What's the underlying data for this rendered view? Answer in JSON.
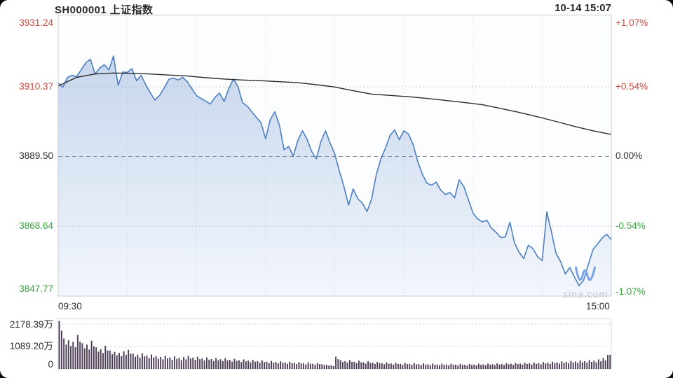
{
  "header": {
    "title": "SH000001 上证指数",
    "timestamp": "10-14 15:07"
  },
  "watermark": "sina.com",
  "colors": {
    "up": "#cc4841",
    "down": "#3aa33f",
    "flat": "#2d2d2d",
    "price_line": "#4d7ec2",
    "avg_line": "#2b2b2b",
    "volume_bar": "#4c3b56",
    "grid_light": "#e4e8f0",
    "grid_dotted": "#c9ced8",
    "zero_line": "#8a8f96",
    "border": "#c6ccd5",
    "fill_rgb": "77,126,194"
  },
  "chart_data": {
    "type": "line",
    "subtype": "intraday-price-with-volume",
    "title": "SH000001 上证指数",
    "prev_close": 3889.5,
    "y_max": 3931.24,
    "y_min": 3847.77,
    "session_minutes": 240,
    "x_ticks": [
      "09:30",
      "15:00"
    ],
    "y_axis_left": [
      {
        "text": "3931.24",
        "tone": "up"
      },
      {
        "text": "3910.37",
        "tone": "up"
      },
      {
        "text": "3889.50",
        "tone": "flat"
      },
      {
        "text": "3868.64",
        "tone": "down"
      },
      {
        "text": "3847.77",
        "tone": "down"
      }
    ],
    "y_axis_right": [
      {
        "text": "+1.07%",
        "tone": "up"
      },
      {
        "text": "+0.54%",
        "tone": "up"
      },
      {
        "text": "0.00%",
        "tone": "flat"
      },
      {
        "text": "-0.54%",
        "tone": "down"
      },
      {
        "text": "-1.07%",
        "tone": "down"
      }
    ],
    "price": {
      "t_step_min": 2,
      "values": [
        3911.5,
        3910.2,
        3913.2,
        3913.8,
        3913.4,
        3915.5,
        3917.6,
        3918.6,
        3914.2,
        3916.0,
        3917.0,
        3915.4,
        3919.6,
        3910.8,
        3914.8,
        3914.7,
        3915.8,
        3912.2,
        3913.8,
        3911.0,
        3908.5,
        3906.4,
        3907.8,
        3910.0,
        3912.6,
        3913.0,
        3912.4,
        3913.2,
        3911.9,
        3909.8,
        3907.7,
        3906.9,
        3906.1,
        3905.2,
        3907.2,
        3908.5,
        3906.0,
        3909.8,
        3912.7,
        3910.5,
        3905.6,
        3904.6,
        3902.9,
        3901.2,
        3899.6,
        3894.8,
        3900.5,
        3902.9,
        3898.9,
        3891.5,
        3892.5,
        3889.6,
        3894.3,
        3897.2,
        3894.6,
        3891.0,
        3888.8,
        3894.0,
        3897.2,
        3893.5,
        3890.3,
        3885.1,
        3880.5,
        3874.9,
        3879.8,
        3876.8,
        3875.5,
        3873.0,
        3876.8,
        3884.0,
        3888.8,
        3892.0,
        3895.8,
        3897.5,
        3894.5,
        3897.2,
        3896.2,
        3893.1,
        3888.0,
        3884.2,
        3881.5,
        3880.9,
        3881.8,
        3879.4,
        3878.1,
        3878.7,
        3877.1,
        3882.5,
        3880.5,
        3876.5,
        3872.5,
        3870.8,
        3869.9,
        3870.4,
        3868.0,
        3866.8,
        3865.2,
        3865.4,
        3869.8,
        3863.6,
        3860.8,
        3858.9,
        3862.9,
        3861.9,
        3859.5,
        3858.3,
        3872.9,
        3867.0,
        3860.5,
        3858.0,
        3854.3,
        3856.2,
        3853.4,
        3850.8,
        3852.4,
        3857.0,
        3861.5,
        3863.3,
        3865.0,
        3866.2,
        3864.6
      ]
    },
    "avg": {
      "t_step_min": 8,
      "values": [
        3910.6,
        3913.2,
        3914.2,
        3914.5,
        3914.4,
        3914.2,
        3913.9,
        3913.6,
        3913.1,
        3912.7,
        3912.4,
        3912.2,
        3911.9,
        3911.6,
        3911.0,
        3910.3,
        3909.2,
        3908.2,
        3907.8,
        3907.4,
        3906.9,
        3906.3,
        3905.7,
        3905.0,
        3903.9,
        3902.7,
        3901.4,
        3900.0,
        3898.5,
        3897.2,
        3896.1
      ]
    },
    "volume": {
      "t_step_min": 2,
      "unit": "万",
      "axis": [
        {
          "text": "2178.39万"
        },
        {
          "text": "1089.20万"
        },
        {
          "text": "0"
        }
      ],
      "axis_max": 2178.39,
      "values": [
        2330,
        1480,
        1390,
        1320,
        1650,
        1250,
        1180,
        1370,
        1050,
        960,
        1120,
        890,
        830,
        780,
        860,
        930,
        740,
        690,
        760,
        650,
        700,
        620,
        580,
        640,
        560,
        610,
        530,
        580,
        630,
        550,
        590,
        510,
        560,
        480,
        530,
        470,
        520,
        440,
        490,
        420,
        460,
        400,
        440,
        380,
        420,
        350,
        390,
        330,
        370,
        310,
        350,
        290,
        330,
        270,
        310,
        250,
        290,
        230,
        200,
        170,
        590,
        420,
        380,
        430,
        350,
        400,
        320,
        370,
        300,
        340,
        280,
        320,
        260,
        300,
        250,
        290,
        240,
        280,
        230,
        270,
        220,
        260,
        215,
        255,
        210,
        250,
        205,
        245,
        200,
        240,
        210,
        250,
        220,
        260,
        230,
        270,
        240,
        280,
        250,
        290,
        260,
        300,
        270,
        310,
        280,
        330,
        300,
        350,
        320,
        370,
        340,
        390,
        360,
        410,
        380,
        430,
        400,
        460,
        520,
        680
      ]
    }
  }
}
